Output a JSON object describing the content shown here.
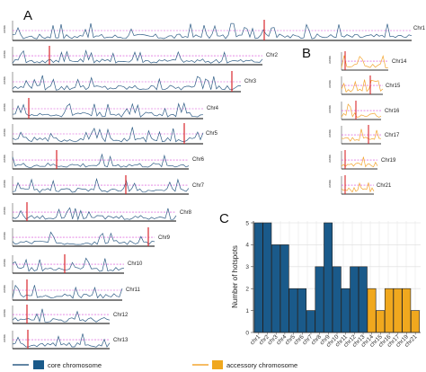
{
  "figure": {
    "panel_a": {
      "letter": "A",
      "y_axis_label": "cM/Mb",
      "tracks": [
        {
          "label": "Chr1"
        },
        {
          "label": "Chr2"
        },
        {
          "label": "Chr3"
        },
        {
          "label": "Chr4"
        },
        {
          "label": "Chr5"
        },
        {
          "label": "Chr6"
        },
        {
          "label": "Chr7"
        },
        {
          "label": "Chr8"
        },
        {
          "label": "Chr9"
        },
        {
          "label": "Chr10"
        },
        {
          "label": "Chr11"
        },
        {
          "label": "Chr12"
        },
        {
          "label": "Chr13"
        }
      ]
    },
    "panel_b": {
      "letter": "B",
      "y_axis_label": "cM/Mb",
      "tracks": [
        {
          "label": "Chr14"
        },
        {
          "label": "Chr15"
        },
        {
          "label": "Chr16"
        },
        {
          "label": "Chr17"
        },
        {
          "label": "Chr19"
        },
        {
          "label": "Chr21"
        }
      ]
    },
    "panel_c": {
      "letter": "C",
      "legend": {
        "core_label": "core chromosome",
        "accessory_label": "accessory chromosome"
      }
    },
    "colors": {
      "core": "#1a5a8a",
      "accessory": "#f0a81e",
      "landscape_line": "#2f5d86",
      "accessory_line": "#f3a530",
      "threshold": "#d646d6",
      "centromere": "#d9262b"
    }
  },
  "chart_data": {
    "type": "bar",
    "categories": [
      "chr1",
      "chr2",
      "chr3",
      "chr4",
      "chr5",
      "chr6",
      "chr7",
      "chr8",
      "chr9",
      "chr10",
      "chr11",
      "chr12",
      "chr13",
      "chr14",
      "chr15",
      "chr16",
      "chr17",
      "chr19",
      "chr21"
    ],
    "values": [
      5,
      5,
      4,
      4,
      2,
      2,
      1,
      3,
      5,
      3,
      2,
      3,
      3,
      2,
      1,
      2,
      2,
      2,
      1
    ],
    "group": [
      "core",
      "core",
      "core",
      "core",
      "core",
      "core",
      "core",
      "core",
      "core",
      "core",
      "core",
      "core",
      "core",
      "accessory",
      "accessory",
      "accessory",
      "accessory",
      "accessory",
      "accessory"
    ],
    "title": "",
    "xlabel": "",
    "ylabel": "Number of hotspots",
    "ylim": [
      0,
      5
    ],
    "yticks": [
      0,
      1,
      2,
      3,
      4,
      5
    ],
    "grid": true
  }
}
